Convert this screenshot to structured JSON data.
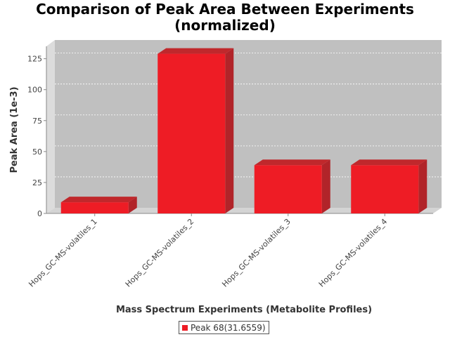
{
  "chart_data": {
    "type": "bar",
    "title_lines": [
      "Comparison of Peak Area Between Experiments",
      "(normalized)"
    ],
    "xlabel": "Mass Spectrum Experiments (Metabolite Profiles)",
    "ylabel": "Peak Area (1e-3)",
    "categories": [
      "Hops_GC-MS-volatiles_1",
      "Hops_GC-MS-volatiles_2",
      "Hops_GC-MS-volatiles_3",
      "Hops_GC-MS-volatiles_4"
    ],
    "series": [
      {
        "name": "Peak 68(31.6559)",
        "values": [
          9,
          129,
          39,
          39
        ]
      }
    ],
    "ylim": [
      0,
      135
    ],
    "yticks": [
      0,
      25,
      50,
      75,
      100,
      125
    ],
    "grid": true,
    "legend_position": "bottom",
    "colors": {
      "bar_front": "#ee1c25",
      "bar_top": "#c0282c",
      "bar_side": "#b12429",
      "plot_bg": "#c0c0c0",
      "wall_side": "#dcdcdc",
      "floor": "#d4d4d4"
    }
  }
}
